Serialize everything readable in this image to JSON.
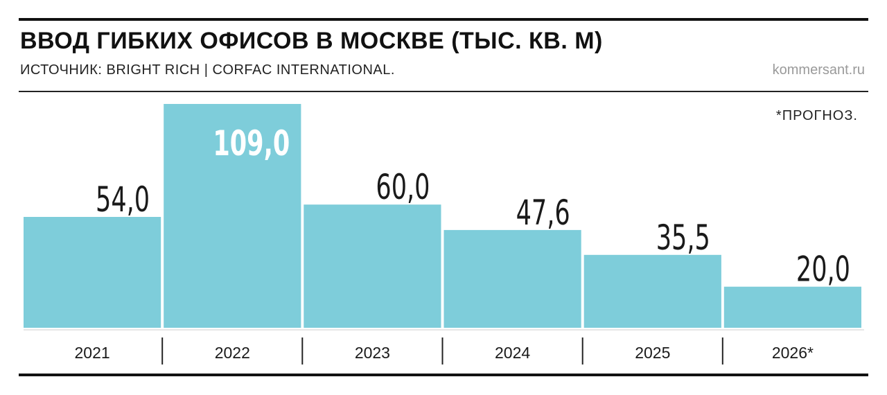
{
  "header": {
    "title": "ВВОД ГИБКИХ ОФИСОВ В МОСКВЕ (ТЫС. КВ. М)",
    "source": "ИСТОЧНИК: BRIGHT RICH | CORFAC INTERNATIONAL.",
    "site": "kommersant.ru"
  },
  "note": "*ПРОГНОЗ.",
  "colors": {
    "bar": "#7ECDDA",
    "text": "#1a1a1a",
    "highlight_label": "#ffffff"
  },
  "chart_data": {
    "type": "bar",
    "title": "ВВОД ГИБКИХ ОФИСОВ В МОСКВЕ (ТЫС. КВ. М)",
    "categories": [
      "2021",
      "2022",
      "2023",
      "2024",
      "2025",
      "2026*"
    ],
    "values": [
      54.0,
      109.0,
      60.0,
      47.6,
      35.5,
      20.0
    ],
    "value_labels": [
      "54,0",
      "109,0",
      "60,0",
      "47,6",
      "35,5",
      "20,0"
    ],
    "xlabel": "",
    "ylabel": "",
    "ylim": [
      0,
      109
    ],
    "grid": false,
    "legend": "none"
  }
}
